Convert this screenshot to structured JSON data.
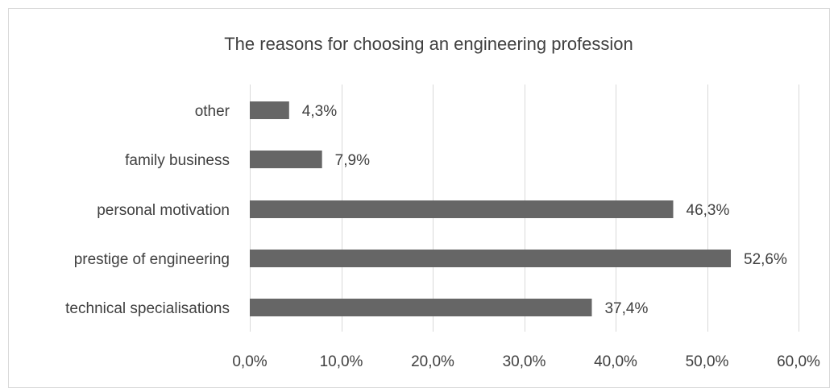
{
  "chart_data": {
    "type": "bar",
    "orientation": "horizontal",
    "title": "The reasons for choosing an engineering profession",
    "categories": [
      "other",
      "family business",
      "personal motivation",
      "prestige of engineering",
      "technical specialisations"
    ],
    "values": [
      4.3,
      7.9,
      46.3,
      52.6,
      37.4
    ],
    "data_labels": [
      "4,3%",
      "7,9%",
      "46,3%",
      "52,6%",
      "37,4%"
    ],
    "xlim": [
      0,
      60
    ],
    "x_ticks": [
      0,
      10,
      20,
      30,
      40,
      50,
      60
    ],
    "x_tick_labels": [
      "0,0%",
      "10,0%",
      "20,0%",
      "30,0%",
      "40,0%",
      "50,0%",
      "60,0%"
    ],
    "grid": "vertical",
    "legend": "none",
    "bar_color": "#666666"
  }
}
